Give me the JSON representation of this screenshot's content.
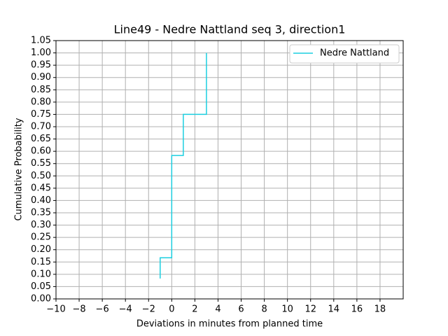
{
  "chart_data": {
    "type": "line",
    "title": "Line49 - Nedre Nattland seq 3, direction1",
    "x_label": "Deviations in minutes from planned time",
    "y_label": "Cumulative Probability",
    "x": [
      -1,
      -1,
      0,
      0,
      1,
      1,
      3,
      3
    ],
    "series": [
      {
        "name": "Nedre Nattland",
        "color": "#1ccfe0",
        "values": [
          0.083,
          0.167,
          0.167,
          0.583,
          0.583,
          0.75,
          0.75,
          1.0
        ]
      }
    ],
    "xlim": [
      -10,
      20
    ],
    "xticks": [
      {
        "value": -10,
        "label": "−10"
      },
      {
        "value": -8,
        "label": "−8"
      },
      {
        "value": -6,
        "label": "−6"
      },
      {
        "value": -4,
        "label": "−4"
      },
      {
        "value": -2,
        "label": "−2"
      },
      0,
      2,
      4,
      6,
      8,
      10,
      12,
      14,
      16,
      18
    ],
    "ylim": [
      0,
      1.05
    ],
    "yticks": [
      {
        "value": 0,
        "label": "0.00"
      },
      {
        "value": 0.05,
        "label": "0.05"
      },
      {
        "value": 0.1,
        "label": "0.10"
      },
      {
        "value": 0.15,
        "label": "0.15"
      },
      {
        "value": 0.2,
        "label": "0.20"
      },
      {
        "value": 0.25,
        "label": "0.25"
      },
      {
        "value": 0.3,
        "label": "0.30"
      },
      {
        "value": 0.35,
        "label": "0.35"
      },
      {
        "value": 0.4,
        "label": "0.40"
      },
      {
        "value": 0.45,
        "label": "0.45"
      },
      {
        "value": 0.5,
        "label": "0.50"
      },
      {
        "value": 0.55,
        "label": "0.55"
      },
      {
        "value": 0.6,
        "label": "0.60"
      },
      {
        "value": 0.65,
        "label": "0.65"
      },
      {
        "value": 0.7,
        "label": "0.70"
      },
      {
        "value": 0.75,
        "label": "0.75"
      },
      {
        "value": 0.8,
        "label": "0.80"
      },
      {
        "value": 0.85,
        "label": "0.85"
      },
      {
        "value": 0.9,
        "label": "0.90"
      },
      {
        "value": 0.95,
        "label": "0.95"
      },
      {
        "value": 1.0,
        "label": "1.00"
      },
      {
        "value": 1.05,
        "label": "1.05"
      }
    ],
    "grid": true,
    "legend": "upper right"
  }
}
